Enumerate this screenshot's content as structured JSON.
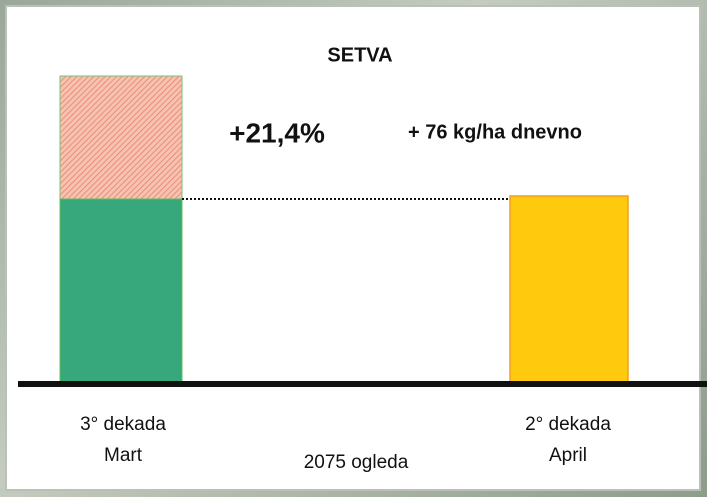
{
  "title": "SETVA",
  "annotations": [
    "+21,4%",
    "+ 76 kg/ha dnevno"
  ],
  "groups": [
    {
      "label": [
        "3° dekada",
        "Mart"
      ]
    },
    {
      "label": [
        "2° dekada",
        "April"
      ]
    }
  ],
  "note": "2075 ogleda"
}
